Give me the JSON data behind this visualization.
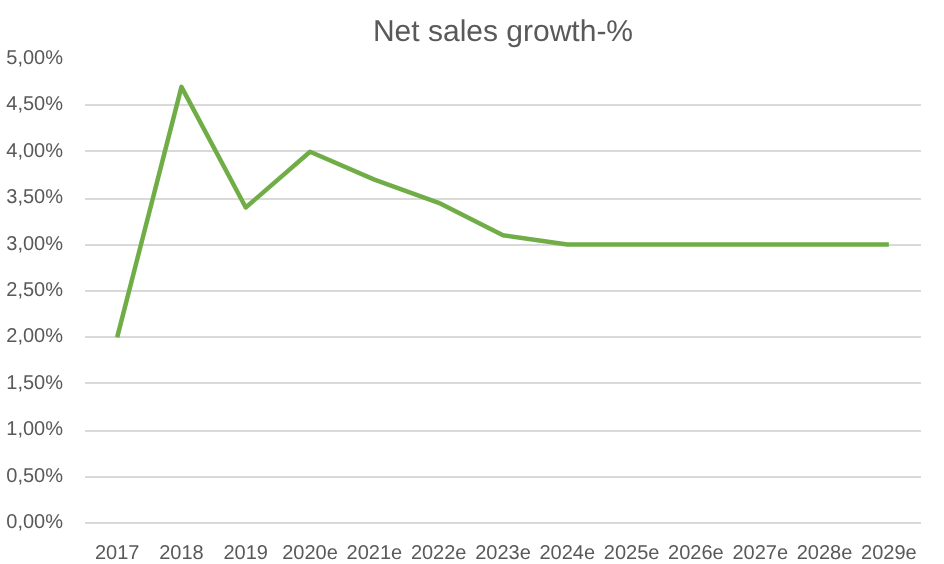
{
  "chart_data": {
    "type": "line",
    "title": "Net sales growth-%",
    "categories": [
      "2017",
      "2018",
      "2019",
      "2020e",
      "2021e",
      "2022e",
      "2023e",
      "2024e",
      "2025e",
      "2026e",
      "2027e",
      "2028e",
      "2029e"
    ],
    "series": [
      {
        "color": "#70ad47",
        "values": [
          2.0,
          4.7,
          3.4,
          4.0,
          3.7,
          3.45,
          3.1,
          3.0,
          3.0,
          3.0,
          3.0,
          3.0,
          3.0
        ]
      }
    ],
    "ylim": [
      0,
      5
    ],
    "yticks": [
      {
        "value": 0,
        "label": "0,00%"
      },
      {
        "value": 0.5,
        "label": "0,50%"
      },
      {
        "value": 1,
        "label": "1,00%"
      },
      {
        "value": 1.5,
        "label": "1,50%"
      },
      {
        "value": 2,
        "label": "2,00%"
      },
      {
        "value": 2.5,
        "label": "2,50%"
      },
      {
        "value": 3,
        "label": "3,00%"
      },
      {
        "value": 3.5,
        "label": "3,50%"
      },
      {
        "value": 4,
        "label": "4,00%"
      },
      {
        "value": 4.5,
        "label": "4,50%"
      },
      {
        "value": 5,
        "label": "5,00%"
      }
    ],
    "grid": "y",
    "marker": "none",
    "line_style": "solid"
  }
}
